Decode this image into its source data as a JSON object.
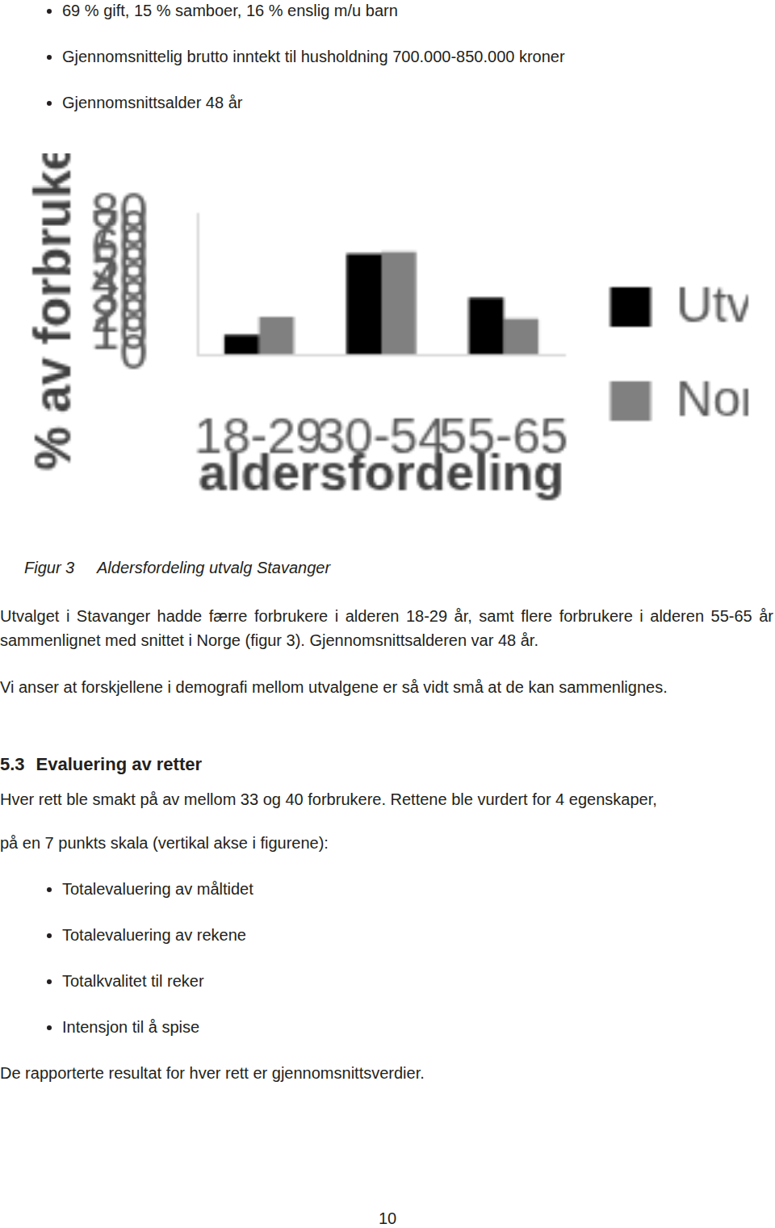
{
  "top_bullets": [
    "69 % gift, 15 % samboer, 16 % enslig m/u barn",
    "Gjennomsnittelig brutto inntekt til husholdning 700.000-850.000 kroner",
    "Gjennomsnittsalder 48 år"
  ],
  "chart_data": {
    "type": "bar",
    "x_label": "aldersfordeling",
    "y_label": "% av forbrukere",
    "categories": [
      "18-29",
      "30-54",
      "55-65"
    ],
    "series": [
      {
        "name": "Utvalg",
        "color": "#000000",
        "values": [
          11,
          57,
          32
        ]
      },
      {
        "name": "Norge",
        "color": "#808080",
        "values": [
          21,
          58,
          20
        ]
      }
    ],
    "ylim": [
      0,
      80
    ],
    "yticks": [
      0,
      10,
      20,
      30,
      40,
      50,
      60,
      70,
      80
    ],
    "grid": false,
    "legend": "right"
  },
  "caption": {
    "label": "Figur 3",
    "text": "Aldersfordeling utvalg Stavanger"
  },
  "paragraphs": [
    "Utvalget i Stavanger hadde færre forbrukere i alderen 18-29 år, samt flere forbrukere i alderen 55-65 år sammenlignet med snittet i Norge (figur 3). Gjennomsnittsalderen var 48 år.",
    "Vi anser at forskjellene i demografi mellom utvalgene er så vidt små at de kan sammenlignes."
  ],
  "section": {
    "number": "5.3",
    "title": "Evaluering av retter"
  },
  "section_text": [
    "Hver rett ble smakt på av mellom 33 og 40 forbrukere. Rettene ble vurdert for 4 egenskaper,",
    "på en 7 punkts skala (vertikal akse i figurene):"
  ],
  "bullets": [
    "Totalevaluering av måltidet",
    "Totalevaluering av rekene",
    "Totalkvalitet til reker",
    "Intensjon til å spise"
  ],
  "closing": "De rapporterte resultat for hver rett er gjennomsnittsverdier.",
  "page_number": "10"
}
